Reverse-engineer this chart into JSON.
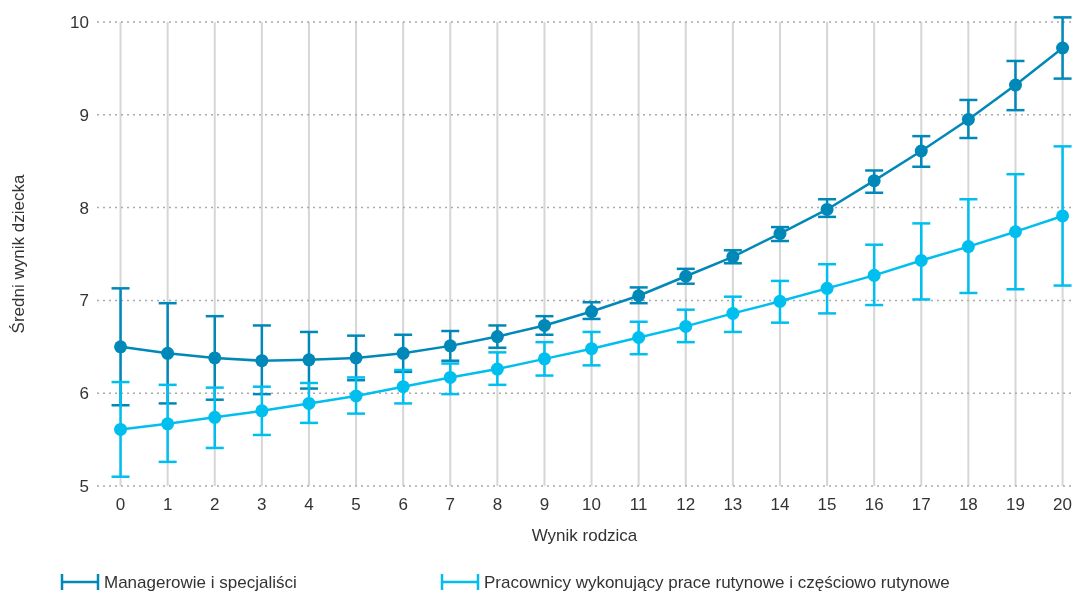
{
  "chart_data": {
    "type": "line",
    "xlabel": "Wynik rodzica",
    "ylabel": "Średni wynik dziecka",
    "x": [
      0,
      1,
      2,
      3,
      4,
      5,
      6,
      7,
      8,
      9,
      10,
      11,
      12,
      13,
      14,
      15,
      16,
      17,
      18,
      19,
      20
    ],
    "xlim": [
      -0.5,
      20.2
    ],
    "xticks": [
      0,
      1,
      2,
      3,
      4,
      5,
      6,
      7,
      8,
      9,
      10,
      11,
      12,
      13,
      14,
      15,
      16,
      17,
      18,
      19,
      20
    ],
    "ylim": [
      5,
      10
    ],
    "yticks": [
      5,
      6,
      7,
      8,
      9,
      10
    ],
    "grid": true,
    "legend": "bottom",
    "marker": "circle",
    "line_style": "solid",
    "series": [
      {
        "name": "Managerowie i specjaliści",
        "color": "#0088b8",
        "values": [
          6.5,
          6.43,
          6.38,
          6.35,
          6.36,
          6.38,
          6.43,
          6.51,
          6.61,
          6.73,
          6.88,
          7.05,
          7.26,
          7.47,
          7.72,
          7.98,
          8.29,
          8.61,
          8.95,
          9.32,
          9.72
        ],
        "errors": [
          [
            5.87,
            7.13
          ],
          [
            5.89,
            6.97
          ],
          [
            5.93,
            6.83
          ],
          [
            5.99,
            6.73
          ],
          [
            6.05,
            6.66
          ],
          [
            6.14,
            6.62
          ],
          [
            6.23,
            6.63
          ],
          [
            6.35,
            6.67
          ],
          [
            6.49,
            6.73
          ],
          [
            6.63,
            6.83
          ],
          [
            6.8,
            6.98
          ],
          [
            6.97,
            7.14
          ],
          [
            7.18,
            7.34
          ],
          [
            7.4,
            7.54
          ],
          [
            7.64,
            7.79
          ],
          [
            7.9,
            8.09
          ],
          [
            8.16,
            8.4
          ],
          [
            8.44,
            8.77
          ],
          [
            8.75,
            9.16
          ],
          [
            9.05,
            9.58
          ],
          [
            9.39,
            10.05
          ]
        ]
      },
      {
        "name": "Pracownicy wykonujący prace rutynowe i częściowo rutynowe",
        "color": "#00bfee",
        "values": [
          5.61,
          5.67,
          5.74,
          5.81,
          5.89,
          5.97,
          6.07,
          6.17,
          6.26,
          6.37,
          6.48,
          6.6,
          6.72,
          6.86,
          6.99,
          7.13,
          7.27,
          7.43,
          7.58,
          7.74,
          7.91
        ],
        "errors": [
          [
            5.1,
            6.12
          ],
          [
            5.26,
            6.09
          ],
          [
            5.41,
            6.06
          ],
          [
            5.55,
            6.07
          ],
          [
            5.68,
            6.11
          ],
          [
            5.78,
            6.17
          ],
          [
            5.89,
            6.25
          ],
          [
            5.99,
            6.32
          ],
          [
            6.09,
            6.44
          ],
          [
            6.19,
            6.55
          ],
          [
            6.3,
            6.66
          ],
          [
            6.42,
            6.77
          ],
          [
            6.55,
            6.9
          ],
          [
            6.66,
            7.04
          ],
          [
            6.76,
            7.21
          ],
          [
            6.86,
            7.39
          ],
          [
            6.95,
            7.6
          ],
          [
            7.01,
            7.83
          ],
          [
            7.08,
            8.09
          ],
          [
            7.12,
            8.36
          ],
          [
            7.16,
            8.66
          ]
        ]
      }
    ]
  }
}
